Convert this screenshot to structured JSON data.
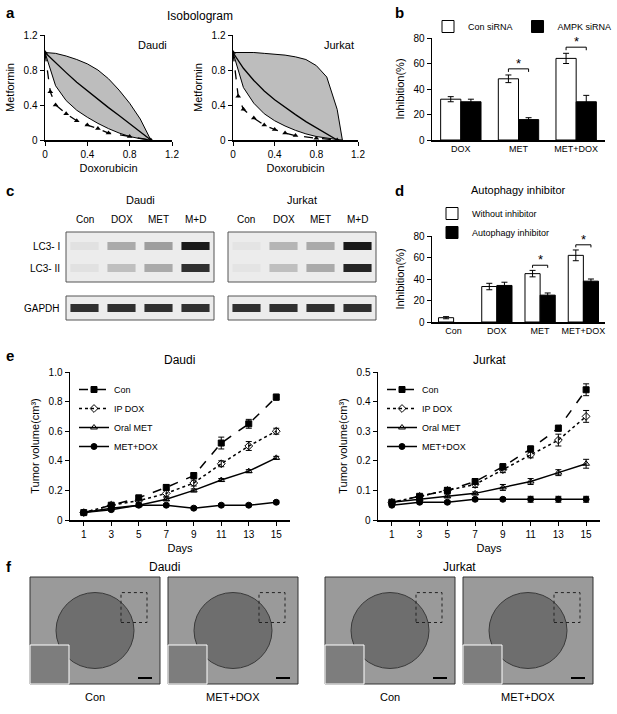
{
  "chart_data": [
    {
      "panel": "a",
      "title": "Isobologram",
      "charts": [
        {
          "type": "isobologram",
          "annotations": [
            {
              "text": "Daudi"
            }
          ],
          "xlabel": "Doxorubicin",
          "ylabel": "Metformin",
          "xlim": [
            0,
            1.2
          ],
          "xticks": [
            0,
            0.4,
            0.8,
            1.2
          ],
          "ylim": [
            0,
            1.2
          ],
          "yticks": [
            0,
            0.4,
            0.8,
            1.2
          ],
          "grid": false,
          "series": [
            {
              "type": "band",
              "color": "#bdbdbd",
              "x": [
                0,
                0.1,
                0.2,
                0.3,
                0.4,
                0.5,
                0.6,
                0.7,
                0.8,
                0.9,
                1.0
              ],
              "upper": [
                1,
                0.99,
                0.96,
                0.92,
                0.87,
                0.8,
                0.7,
                0.57,
                0.42,
                0.24,
                0
              ],
              "lower": [
                1,
                0.62,
                0.45,
                0.34,
                0.26,
                0.19,
                0.13,
                0.08,
                0.04,
                0.015,
                0
              ]
            },
            {
              "type": "line",
              "line_style": "solid",
              "color": "#000000",
              "x": [
                0,
                0.1,
                0.2,
                0.3,
                0.4,
                0.5,
                0.6,
                0.7,
                0.8,
                0.9,
                1.0
              ],
              "values": [
                1,
                0.88,
                0.77,
                0.66,
                0.56,
                0.46,
                0.37,
                0.28,
                0.19,
                0.1,
                0
              ]
            },
            {
              "type": "line",
              "line_style": "dashed",
              "marker": "triangle",
              "color": "#000000",
              "x": [
                0,
                0.05,
                0.1,
                0.2,
                0.3,
                0.4,
                0.5,
                0.6,
                0.8,
                1.0
              ],
              "values": [
                1,
                0.55,
                0.4,
                0.3,
                0.22,
                0.17,
                0.13,
                0.08,
                0.04,
                0
              ]
            }
          ]
        },
        {
          "type": "isobologram",
          "annotations": [
            {
              "text": "Jurkat"
            }
          ],
          "xlabel": "Doxorubicin",
          "ylabel": "Metformin",
          "xlim": [
            0,
            1.2
          ],
          "xticks": [
            0,
            0.4,
            0.8,
            1.2
          ],
          "ylim": [
            0,
            1.2
          ],
          "yticks": [
            0,
            0.4,
            0.8,
            1.2
          ],
          "grid": false,
          "series": [
            {
              "type": "band",
              "color": "#bdbdbd",
              "x": [
                0,
                0.1,
                0.2,
                0.3,
                0.4,
                0.5,
                0.6,
                0.7,
                0.8,
                0.9,
                1.0,
                1.05
              ],
              "upper": [
                1,
                1,
                1,
                0.99,
                0.98,
                0.97,
                0.95,
                0.92,
                0.85,
                0.72,
                0.35,
                0
              ],
              "lower": [
                1,
                0.6,
                0.42,
                0.3,
                0.22,
                0.16,
                0.11,
                0.07,
                0.04,
                0.02,
                0.005,
                0
              ]
            },
            {
              "type": "line",
              "line_style": "solid",
              "color": "#000000",
              "x": [
                0,
                0.1,
                0.2,
                0.3,
                0.4,
                0.5,
                0.6,
                0.7,
                0.8,
                0.9,
                1.0
              ],
              "values": [
                1,
                0.82,
                0.68,
                0.56,
                0.46,
                0.37,
                0.29,
                0.21,
                0.14,
                0.07,
                0
              ]
            },
            {
              "type": "line",
              "line_style": "dashed",
              "marker": "triangle",
              "color": "#000000",
              "x": [
                0,
                0.05,
                0.1,
                0.2,
                0.3,
                0.4,
                0.5,
                0.6,
                0.8,
                1.0
              ],
              "values": [
                1,
                0.5,
                0.35,
                0.25,
                0.17,
                0.12,
                0.08,
                0.05,
                0.02,
                0
              ]
            }
          ]
        }
      ]
    },
    {
      "panel": "b",
      "type": "bar",
      "ylabel": "Inhibition(%)",
      "categories": [
        "DOX",
        "MET",
        "MET+DOX"
      ],
      "ylim": [
        0,
        80
      ],
      "yticks": [
        0,
        20,
        40,
        60,
        80
      ],
      "grid": false,
      "legend": "top",
      "series": [
        {
          "name": "Con siRNA",
          "color": "#ffffff",
          "values": [
            32,
            48,
            64
          ],
          "errors": [
            2,
            3,
            4
          ]
        },
        {
          "name": "AMPK siRNA",
          "color": "#000000",
          "values": [
            30,
            16,
            30
          ],
          "errors": [
            2,
            1.5,
            5
          ]
        }
      ],
      "annotations": [
        {
          "category": "MET",
          "text": "*"
        },
        {
          "category": "MET+DOX",
          "text": "*"
        }
      ]
    },
    {
      "panel": "c",
      "type": "blot",
      "row_labels": [
        "LC3- I",
        "LC3- II",
        "GAPDH"
      ],
      "groups": [
        {
          "title": "Daudi",
          "lanes": [
            "Con",
            "DOX",
            "MET",
            "M+D"
          ],
          "intensity": [
            [
              0.05,
              0.3,
              0.35,
              0.95
            ],
            [
              0.05,
              0.2,
              0.3,
              0.85
            ],
            [
              0.85,
              0.85,
              0.85,
              0.85
            ]
          ]
        },
        {
          "title": "Jurkat",
          "lanes": [
            "Con",
            "DOX",
            "MET",
            "M+D"
          ],
          "intensity": [
            [
              0.03,
              0.25,
              0.3,
              0.95
            ],
            [
              0.03,
              0.2,
              0.3,
              0.9
            ],
            [
              0.85,
              0.85,
              0.85,
              0.85
            ]
          ]
        }
      ]
    },
    {
      "panel": "d",
      "type": "bar",
      "title": "Autophagy inhibitor",
      "ylabel": "Inhibition(%)",
      "categories": [
        "Con",
        "DOX",
        "MET",
        "MET+DOX"
      ],
      "ylim": [
        0,
        80
      ],
      "yticks": [
        0,
        20,
        40,
        60,
        80
      ],
      "grid": false,
      "legend": "top",
      "series": [
        {
          "name": "Without inhibitor",
          "color": "#ffffff",
          "values": [
            4,
            33,
            45,
            62
          ],
          "errors": [
            1,
            3,
            3,
            5
          ]
        },
        {
          "name": "Autophagy inhibitor",
          "color": "#000000",
          "values": [
            null,
            34,
            25,
            38
          ],
          "errors": [
            null,
            3,
            2,
            2
          ]
        }
      ],
      "annotations": [
        {
          "category": "MET",
          "text": "*"
        },
        {
          "category": "MET+DOX",
          "text": "*"
        }
      ]
    },
    {
      "panel": "e",
      "charts": [
        {
          "type": "line",
          "title": "Daudi",
          "xlabel": "Days",
          "ylabel": "Tumor volume(cm³)",
          "x": [
            1,
            3,
            5,
            7,
            9,
            11,
            13,
            15
          ],
          "xlim": [
            0,
            16
          ],
          "xticks": [
            1,
            3,
            5,
            7,
            9,
            11,
            13,
            15
          ],
          "ylim": [
            0,
            1
          ],
          "yticks": [
            0,
            0.2,
            0.4,
            0.6,
            0.8,
            {
              "value": 1,
              "label": "1.0"
            }
          ],
          "grid": false,
          "legend": "upper left",
          "series": [
            {
              "name": "Con",
              "color": "#000000",
              "marker": "square",
              "line_style": "dashed",
              "values": [
                0.05,
                0.1,
                0.15,
                0.22,
                0.3,
                0.52,
                0.65,
                0.83
              ],
              "errors": [
                0.005,
                0.01,
                0.01,
                0.02,
                0.02,
                0.04,
                0.03,
                0.02
              ]
            },
            {
              "name": "IP DOX",
              "color": "#000000",
              "marker": "diamond-open",
              "line_style": "dotted",
              "values": [
                0.05,
                0.1,
                0.13,
                0.18,
                0.25,
                0.38,
                0.5,
                0.6
              ],
              "errors": [
                0.005,
                0.01,
                0.01,
                0.02,
                0.02,
                0.02,
                0.03,
                0.02
              ]
            },
            {
              "name": "Oral MET",
              "color": "#000000",
              "marker": "triangle-open",
              "line_style": "solid",
              "values": [
                0.05,
                0.08,
                0.1,
                0.14,
                0.2,
                0.27,
                0.33,
                0.42
              ],
              "errors": [
                0.005,
                0.01,
                0.01,
                0.01,
                0.01,
                0.01,
                0.01,
                0.01
              ]
            },
            {
              "name": "MET+DOX",
              "color": "#000000",
              "marker": "circle",
              "line_style": "solid",
              "values": [
                0.05,
                0.07,
                0.1,
                0.1,
                0.08,
                0.1,
                0.1,
                0.12
              ],
              "errors": [
                0.005,
                0.01,
                0.01,
                0.01,
                0.01,
                0.01,
                0.01,
                0.01
              ]
            }
          ]
        },
        {
          "type": "line",
          "title": "Jurkat",
          "xlabel": "Days",
          "ylabel": "Tumor volume(cm³)",
          "x": [
            1,
            3,
            5,
            7,
            9,
            11,
            13,
            15
          ],
          "xlim": [
            0,
            16
          ],
          "xticks": [
            1,
            3,
            5,
            7,
            9,
            11,
            13,
            15
          ],
          "ylim": [
            0,
            0.5
          ],
          "yticks": [
            0,
            0.1,
            0.2,
            0.3,
            0.4,
            0.5
          ],
          "grid": false,
          "legend": "upper left",
          "series": [
            {
              "name": "Con",
              "color": "#000000",
              "marker": "square",
              "line_style": "dashed",
              "values": [
                0.06,
                0.08,
                0.1,
                0.13,
                0.18,
                0.24,
                0.31,
                0.44
              ],
              "errors": [
                0.005,
                0.005,
                0.01,
                0.01,
                0.01,
                0.01,
                0.01,
                0.02
              ]
            },
            {
              "name": "IP DOX",
              "color": "#000000",
              "marker": "diamond-open",
              "line_style": "dotted",
              "values": [
                0.06,
                0.08,
                0.1,
                0.12,
                0.17,
                0.22,
                0.27,
                0.35
              ],
              "errors": [
                0.005,
                0.005,
                0.01,
                0.01,
                0.01,
                0.01,
                0.02,
                0.02
              ]
            },
            {
              "name": "Oral MET",
              "color": "#000000",
              "marker": "triangle-open",
              "line_style": "solid",
              "values": [
                0.06,
                0.07,
                0.08,
                0.09,
                0.11,
                0.13,
                0.16,
                0.19
              ],
              "errors": [
                0.005,
                0.005,
                0.005,
                0.005,
                0.01,
                0.01,
                0.01,
                0.015
              ]
            },
            {
              "name": "MET+DOX",
              "color": "#000000",
              "marker": "circle",
              "line_style": "solid",
              "values": [
                0.05,
                0.06,
                0.06,
                0.07,
                0.07,
                0.07,
                0.07,
                0.07
              ],
              "errors": [
                0.005,
                0.005,
                0.005,
                0.005,
                0.005,
                0.01,
                0.01,
                0.01
              ]
            }
          ]
        }
      ]
    },
    {
      "panel": "f",
      "type": "image",
      "groups": [
        {
          "title": "Daudi",
          "labels": [
            "Con",
            "MET+DOX"
          ]
        },
        {
          "title": "Jurkat",
          "labels": [
            "Con",
            "MET+DOX"
          ]
        }
      ]
    }
  ]
}
